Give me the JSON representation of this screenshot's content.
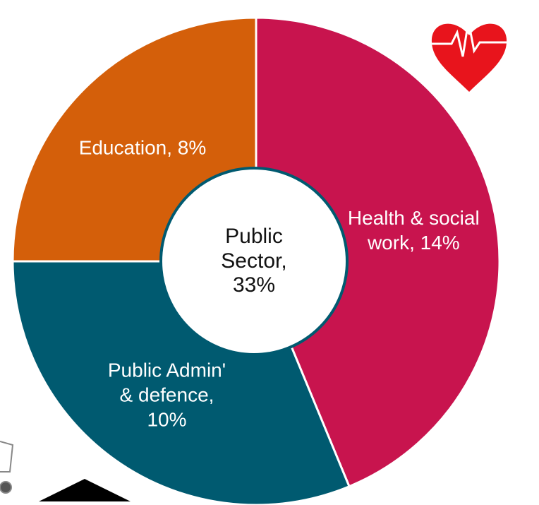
{
  "chart_data": {
    "type": "donut",
    "labels": [
      "Health & social work, 14%",
      "Public Admin' & defence, 10%",
      "Education, 8%"
    ],
    "values": [
      14,
      10,
      8
    ],
    "colors": [
      "#c8144e",
      "#005a70",
      "#d45f0a"
    ],
    "center_label": "Public Sector, 33%"
  }
}
